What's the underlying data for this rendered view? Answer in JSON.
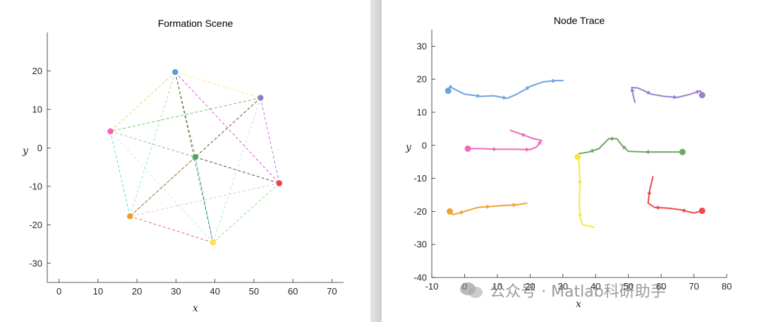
{
  "chart_data": [
    {
      "type": "scatter",
      "title": "Formation Scene",
      "xlabel": "x",
      "ylabel": "y",
      "xlim": [
        -3,
        73
      ],
      "ylim": [
        -35,
        30
      ],
      "xticks": [
        0,
        10,
        20,
        30,
        40,
        50,
        60,
        70
      ],
      "yticks": [
        20,
        10,
        0,
        -10,
        -20,
        -30
      ],
      "nodes": [
        {
          "name": "blue",
          "x": 29.8,
          "y": 19.7,
          "color": "#5b9bd5"
        },
        {
          "name": "purple",
          "x": 51.7,
          "y": 13.0,
          "color": "#8e7cc3"
        },
        {
          "name": "pink",
          "x": 13.2,
          "y": 4.3,
          "color": "#ff5fb0"
        },
        {
          "name": "green",
          "x": 35.0,
          "y": -2.4,
          "color": "#4fa65f"
        },
        {
          "name": "red",
          "x": 56.5,
          "y": -9.2,
          "color": "#e84545"
        },
        {
          "name": "orange",
          "x": 18.2,
          "y": -17.8,
          "color": "#f39a22"
        },
        {
          "name": "yellow",
          "x": 39.5,
          "y": -24.6,
          "color": "#ffe14a"
        }
      ],
      "edges": [
        {
          "from": 0,
          "to": 1,
          "color": "#f0e86a"
        },
        {
          "from": 0,
          "to": 2,
          "color": "#cfd85a"
        },
        {
          "from": 0,
          "to": 3,
          "color": "#6b8a3a"
        },
        {
          "from": 0,
          "to": 4,
          "color": "#e040e0"
        },
        {
          "from": 0,
          "to": 5,
          "color": "#8ee8a8"
        },
        {
          "from": 0,
          "to": 6,
          "color": "#4a7a3a"
        },
        {
          "from": 1,
          "to": 2,
          "color": "#5ac44a"
        },
        {
          "from": 1,
          "to": 3,
          "color": "#555566"
        },
        {
          "from": 1,
          "to": 4,
          "color": "#c060e0"
        },
        {
          "from": 1,
          "to": 5,
          "color": "#7a5a3a"
        },
        {
          "from": 1,
          "to": 6,
          "color": "#b0e8c8"
        },
        {
          "from": 2,
          "to": 3,
          "color": "#3aa84a"
        },
        {
          "from": 2,
          "to": 4,
          "color": "#c8d0d8"
        },
        {
          "from": 2,
          "to": 5,
          "color": "#40d8d8"
        },
        {
          "from": 2,
          "to": 6,
          "color": "#c0e8f0"
        },
        {
          "from": 3,
          "to": 4,
          "color": "#4a4a5a"
        },
        {
          "from": 3,
          "to": 5,
          "color": "#a87a4a"
        },
        {
          "from": 3,
          "to": 6,
          "color": "#3aa8c8"
        },
        {
          "from": 4,
          "to": 5,
          "color": "#f0b8d0"
        },
        {
          "from": 4,
          "to": 6,
          "color": "#7ae87a"
        },
        {
          "from": 5,
          "to": 6,
          "color": "#e85a5a"
        }
      ]
    },
    {
      "type": "line",
      "title": "Node Trace",
      "xlabel": "x",
      "ylabel": "y",
      "xlim": [
        -10,
        80
      ],
      "ylim": [
        -40,
        35
      ],
      "xticks": [
        -10,
        0,
        10,
        20,
        30,
        40,
        50,
        60,
        70,
        80
      ],
      "yticks": [
        30,
        20,
        10,
        0,
        -10,
        -20,
        -30,
        -40
      ],
      "series": [
        {
          "color": "#6fa3dc",
          "points": [
            [
              -5,
              16.5
            ],
            [
              -4.5,
              17.8
            ],
            [
              -3.5,
              17.2
            ],
            [
              0,
              15.5
            ],
            [
              5,
              14.8
            ],
            [
              9,
              15
            ],
            [
              13,
              14.2
            ],
            [
              16,
              15.5
            ],
            [
              20,
              17.8
            ],
            [
              24,
              19.2
            ],
            [
              28,
              19.6
            ],
            [
              30,
              19.6
            ]
          ]
        },
        {
          "color": "#9a7fd0",
          "points": [
            [
              52,
              13
            ],
            [
              51.5,
              15
            ],
            [
              51,
              17.5
            ],
            [
              53,
              17.3
            ],
            [
              57,
              15.5
            ],
            [
              61,
              14.8
            ],
            [
              65,
              14.5
            ],
            [
              69,
              15.5
            ],
            [
              72,
              16.5
            ],
            [
              72.5,
              15.2
            ]
          ]
        },
        {
          "color": "#f06ab8",
          "points": [
            [
              1,
              -1
            ],
            [
              5,
              -1
            ],
            [
              10,
              -1.2
            ],
            [
              15,
              -1.2
            ],
            [
              20,
              -1.3
            ],
            [
              22,
              -0.5
            ],
            [
              23.5,
              1.5
            ],
            [
              21,
              2
            ],
            [
              17,
              3.5
            ],
            [
              14,
              4.5
            ]
          ]
        },
        {
          "color": "#6aaa5e",
          "points": [
            [
              66.5,
              -2
            ],
            [
              60,
              -2
            ],
            [
              55,
              -2
            ],
            [
              50,
              -1.8
            ],
            [
              48,
              0
            ],
            [
              46.5,
              2
            ],
            [
              44,
              2
            ],
            [
              41,
              -1
            ],
            [
              38,
              -2
            ],
            [
              35,
              -2.5
            ]
          ]
        },
        {
          "color": "#f2e84a",
          "points": [
            [
              34.5,
              -3.5
            ],
            [
              35,
              -6
            ],
            [
              35.2,
              -12
            ],
            [
              35,
              -18
            ],
            [
              35.3,
              -22
            ],
            [
              36,
              -24
            ],
            [
              39.5,
              -24.8
            ]
          ]
        },
        {
          "color": "#f5a030",
          "points": [
            [
              -4.5,
              -20
            ],
            [
              -3.5,
              -21
            ],
            [
              0,
              -20
            ],
            [
              4,
              -18.8
            ],
            [
              8,
              -18.5
            ],
            [
              12,
              -18.2
            ],
            [
              16,
              -18
            ],
            [
              19,
              -17.5
            ]
          ]
        },
        {
          "color": "#ee4a4a",
          "points": [
            [
              72.5,
              -19.8
            ],
            [
              70,
              -20.5
            ],
            [
              66,
              -19.5
            ],
            [
              62,
              -19
            ],
            [
              58,
              -18.8
            ],
            [
              56,
              -17.5
            ],
            [
              56.5,
              -13.5
            ],
            [
              57.5,
              -9.5
            ]
          ]
        }
      ],
      "start_markers": [
        {
          "x": -5,
          "y": 16.5,
          "color": "#6fa3dc"
        },
        {
          "x": 72.5,
          "y": 15.2,
          "color": "#9a7fd0"
        },
        {
          "x": 1,
          "y": -1,
          "color": "#f06ab8"
        },
        {
          "x": 66.5,
          "y": -2,
          "color": "#6aaa5e"
        },
        {
          "x": 34.5,
          "y": -3.5,
          "color": "#f2e84a"
        },
        {
          "x": -4.5,
          "y": -20,
          "color": "#f5a030"
        },
        {
          "x": 72.5,
          "y": -19.8,
          "color": "#ee4a4a"
        }
      ]
    }
  ],
  "watermark": {
    "icon": "wechat-icon",
    "text": "公众号 · Matlab科研助手"
  }
}
